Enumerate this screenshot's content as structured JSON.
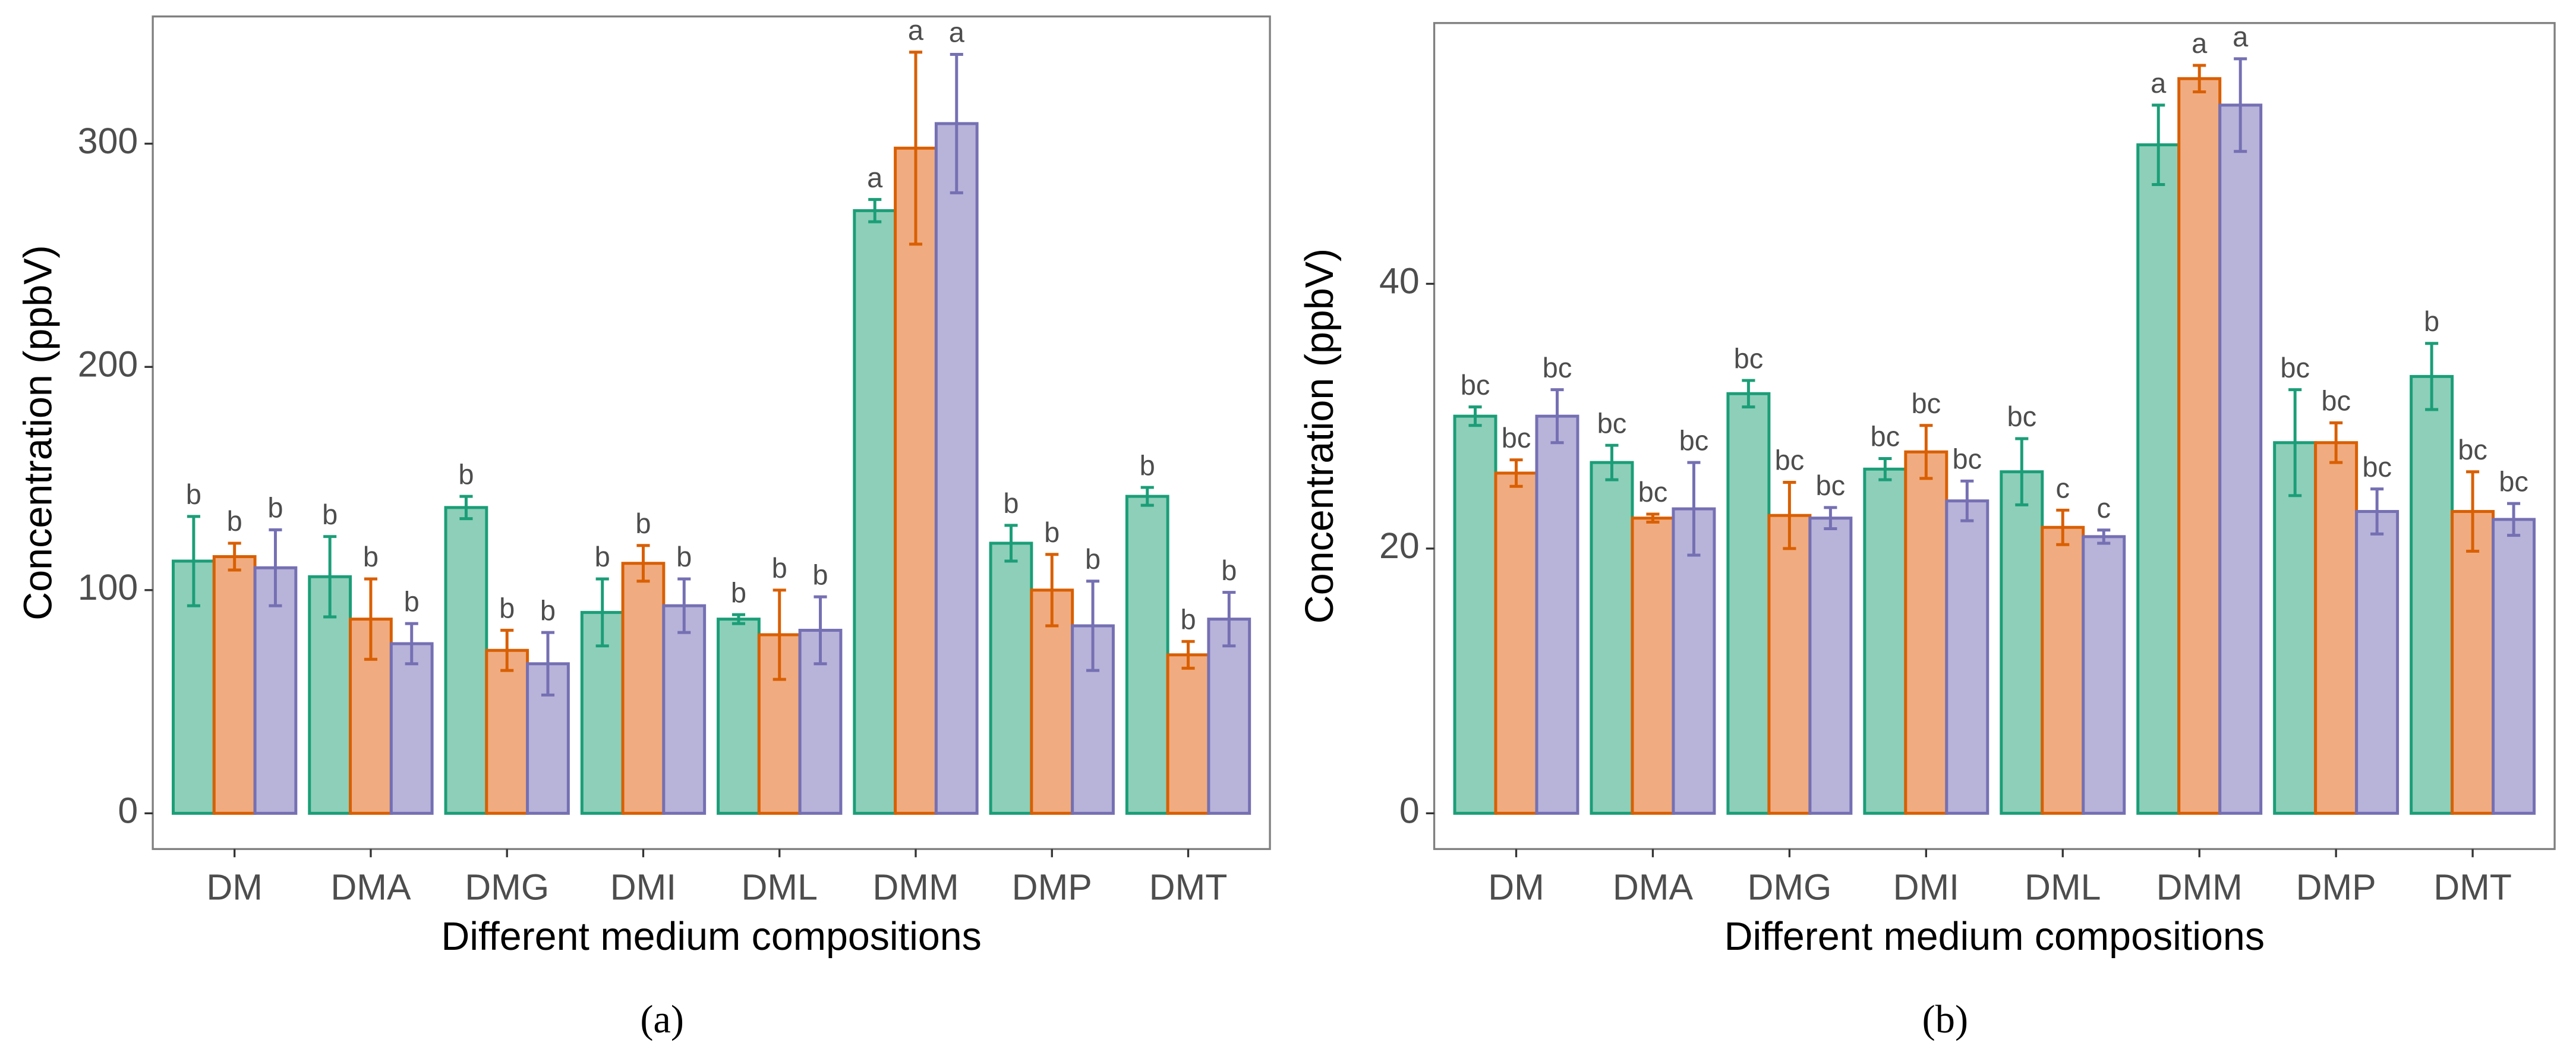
{
  "chart_data": [
    {
      "type": "bar",
      "caption": "(a)",
      "xlabel": "Different medium compositions",
      "ylabel": "Concentration (ppbV)",
      "categories": [
        "DM",
        "DMA",
        "DMG",
        "DMI",
        "DML",
        "DMM",
        "DMP",
        "DMT"
      ],
      "ylim": [
        -16,
        357
      ],
      "yticks": [
        0,
        100,
        200,
        300
      ],
      "series": [
        {
          "color": "#1b9e77",
          "fill": "#8ecfb9",
          "values": [
            113,
            106,
            137,
            90,
            87,
            270,
            121,
            142
          ],
          "errors": [
            20,
            18,
            5,
            15,
            2,
            5,
            8,
            4
          ],
          "labels": [
            "b",
            "b",
            "b",
            "b",
            "b",
            "a",
            "b",
            "b"
          ]
        },
        {
          "color": "#d95f02",
          "fill": "#f0ac80",
          "values": [
            115,
            87,
            73,
            112,
            80,
            298,
            100,
            71
          ],
          "errors": [
            6,
            18,
            9,
            8,
            20,
            43,
            16,
            6
          ],
          "labels": [
            "b",
            "b",
            "b",
            "b",
            "b",
            "a",
            "b",
            "b"
          ]
        },
        {
          "color": "#7570b3",
          "fill": "#b8b3d9",
          "values": [
            110,
            76,
            67,
            93,
            82,
            309,
            84,
            87
          ],
          "errors": [
            17,
            9,
            14,
            12,
            15,
            31,
            20,
            12
          ],
          "labels": [
            "b",
            "b",
            "b",
            "b",
            "b",
            "a",
            "b",
            "b"
          ]
        }
      ]
    },
    {
      "type": "bar",
      "caption": "(b)",
      "xlabel": "Different medium compositions",
      "ylabel": "Concentration (ppbV)",
      "categories": [
        "DM",
        "DMA",
        "DMG",
        "DMI",
        "DML",
        "DMM",
        "DMP",
        "DMT"
      ],
      "ylim": [
        -2.7,
        59.7
      ],
      "yticks": [
        0,
        20,
        40
      ],
      "series": [
        {
          "color": "#1b9e77",
          "fill": "#8ecfb9",
          "values": [
            30,
            26.5,
            31.7,
            26,
            25.8,
            50.5,
            28,
            33
          ],
          "errors": [
            0.7,
            1.3,
            1,
            0.8,
            2.5,
            3,
            4,
            2.5
          ],
          "labels": [
            "bc",
            "bc",
            "bc",
            "bc",
            "bc",
            "a",
            "bc",
            "b"
          ]
        },
        {
          "color": "#d95f02",
          "fill": "#f0ac80",
          "values": [
            25.7,
            22.3,
            22.5,
            27.3,
            21.6,
            55.5,
            28,
            22.8
          ],
          "errors": [
            1,
            0.3,
            2.5,
            2,
            1.3,
            1,
            1.5,
            3
          ],
          "labels": [
            "bc",
            "bc",
            "bc",
            "bc",
            "c",
            "a",
            "bc",
            "bc"
          ]
        },
        {
          "color": "#7570b3",
          "fill": "#b8b3d9",
          "values": [
            30,
            23,
            22.3,
            23.6,
            20.9,
            53.5,
            22.8,
            22.2
          ],
          "errors": [
            2,
            3.5,
            0.8,
            1.5,
            0.5,
            3.5,
            1.7,
            1.2
          ],
          "labels": [
            "bc",
            "bc",
            "bc",
            "bc",
            "c",
            "a",
            "bc",
            "bc"
          ]
        }
      ]
    }
  ]
}
